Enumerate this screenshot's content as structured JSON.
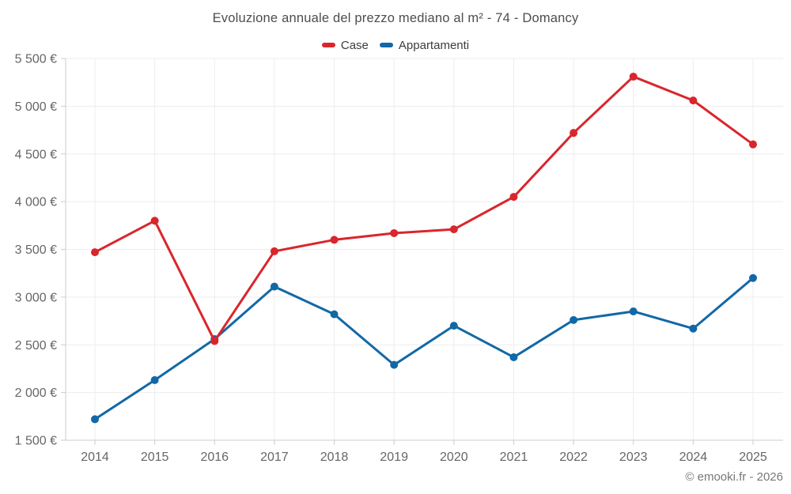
{
  "header": {
    "title": "Evoluzione annuale del prezzo mediano al m² - 74 - Domancy"
  },
  "legend": [
    {
      "label": "Case",
      "color": "#d9262c"
    },
    {
      "label": "Appartamenti",
      "color": "#1268a6"
    }
  ],
  "chart_data": {
    "type": "line",
    "title": "Evoluzione annuale del prezzo mediano al m² - 74 - Domancy",
    "categories": [
      "2014",
      "2015",
      "2016",
      "2017",
      "2018",
      "2019",
      "2020",
      "2021",
      "2022",
      "2023",
      "2024",
      "2025"
    ],
    "series": [
      {
        "name": "Case",
        "color": "#d9262c",
        "values": [
          3470,
          3800,
          2540,
          3480,
          3600,
          3670,
          3710,
          4050,
          4720,
          5310,
          5060,
          4600
        ]
      },
      {
        "name": "Appartamenti",
        "color": "#1268a6",
        "values": [
          1720,
          2130,
          2560,
          3110,
          2820,
          2290,
          2700,
          2370,
          2760,
          2850,
          2670,
          3200
        ]
      }
    ],
    "xlabel": "",
    "ylabel": "",
    "ylim": [
      1500,
      5500
    ],
    "ytick_step": 500,
    "ytick_labels": [
      "1 500 €",
      "2 000 €",
      "2 500 €",
      "3 000 €",
      "3 500 €",
      "4 000 €",
      "4 500 €",
      "5 000 €",
      "5 500 €"
    ],
    "grid": true,
    "legend_position": "top"
  },
  "footer": {
    "copyright": "© emooki.fr - 2026"
  },
  "colors": {
    "grid": "#ededed",
    "axis": "#cccccc",
    "tick_text": "#666666"
  }
}
